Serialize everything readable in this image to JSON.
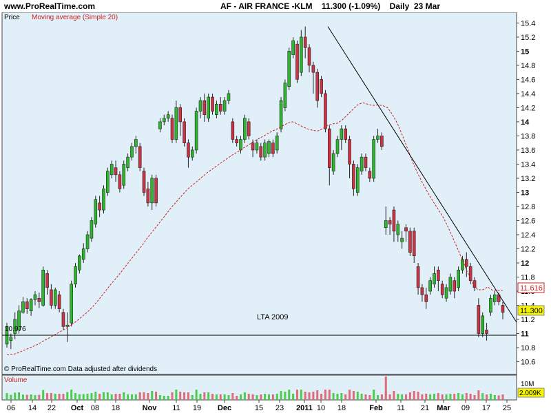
{
  "header": {
    "site": "www.ProRealTime.com",
    "instrument": "AF - AIR FRANCE -KLM",
    "last": "11.300 (-1.09%)",
    "period": "Daily",
    "date": "23 Mar"
  },
  "legend": {
    "price_label": "Price",
    "ma_label": "Moving average (Simple 20)",
    "volume_label": "Volume"
  },
  "footer_note": "© ProRealTime.com  Data adjusted after dividends",
  "annotations": {
    "support_label": "LTA 2009",
    "support_price_text": "10.976",
    "ma_value_box": "11.616",
    "last_value_box": "11.300",
    "volume_scale": "10M",
    "volume_last_box": "2.009K"
  },
  "colors": {
    "panel_bg": "#e1eff8",
    "up": "#2db72d",
    "down": "#cc3344",
    "ma": "#cc2222",
    "volume_up": "#4ccc4c",
    "volume_down": "#dd6b7a",
    "value_box_ma": "#cc2222",
    "value_box_last": "#f5f500"
  },
  "chart_data": {
    "type": "candlestick",
    "ylim": [
      10.42,
      15.55
    ],
    "yticks": [
      10.6,
      10.8,
      11,
      11.2,
      11.4,
      11.6,
      11.8,
      12,
      12.2,
      12.4,
      12.6,
      12.8,
      13,
      13.2,
      13.4,
      13.6,
      13.8,
      14,
      14.2,
      14.4,
      14.6,
      14.8,
      15,
      15.2,
      15.4
    ],
    "x_labels": [
      "06",
      "14",
      "22",
      "Oct",
      "08",
      "18",
      "Nov",
      "11",
      "19",
      "Dec",
      "15",
      "23",
      "2011",
      "10",
      "18",
      "Feb",
      "11",
      "21",
      "Mar",
      "09",
      "17",
      "25"
    ],
    "trendline": {
      "from_value": 15.35,
      "to_value": 11.16
    },
    "support_line": 10.976,
    "moving_average_points": [
      10.7,
      10.7,
      10.72,
      10.75,
      10.78,
      10.81,
      10.84,
      10.88,
      10.92,
      10.96,
      11.0,
      11.04,
      11.08,
      11.13,
      11.18,
      11.24,
      11.3,
      11.37,
      11.45,
      11.54,
      11.63,
      11.72,
      11.8,
      11.89,
      11.98,
      12.07,
      12.16,
      12.25,
      12.35,
      12.44,
      12.53,
      12.62,
      12.71,
      12.8,
      12.88,
      12.96,
      13.04,
      13.1,
      13.16,
      13.22,
      13.28,
      13.33,
      13.38,
      13.43,
      13.48,
      13.53,
      13.57,
      13.62,
      13.66,
      13.71,
      13.75,
      13.79,
      13.83,
      13.87,
      13.9,
      13.94,
      13.98,
      14.0,
      13.97,
      13.93,
      13.9,
      13.88,
      13.87,
      13.9,
      13.95,
      13.97,
      13.98,
      14.03,
      14.1,
      14.17,
      14.24,
      14.27,
      14.25,
      14.23,
      14.24,
      14.23,
      14.2,
      14.1,
      13.97,
      13.8,
      13.62,
      13.43,
      13.27,
      13.13,
      13.0,
      12.88,
      12.77,
      12.66,
      12.52,
      12.36,
      12.2,
      12.03,
      11.86,
      11.71,
      11.62,
      11.62,
      11.66,
      11.61,
      11.61,
      11.61
    ],
    "candles": [
      [
        10.85,
        11.1,
        10.8,
        11.15
      ],
      [
        10.9,
        10.95,
        10.78,
        11.0
      ],
      [
        11.0,
        11.2,
        10.92,
        11.3
      ],
      [
        11.05,
        11.32,
        11.0,
        11.4
      ],
      [
        11.3,
        11.45,
        11.28,
        11.52
      ],
      [
        11.45,
        11.35,
        11.28,
        11.5
      ],
      [
        11.32,
        11.48,
        11.25,
        11.5
      ],
      [
        11.48,
        11.55,
        11.4,
        11.6
      ],
      [
        11.5,
        11.45,
        11.36,
        11.58
      ],
      [
        11.4,
        11.9,
        11.38,
        11.95
      ],
      [
        11.85,
        11.65,
        11.55,
        11.9
      ],
      [
        11.62,
        11.4,
        11.35,
        11.7
      ],
      [
        11.4,
        11.62,
        11.35,
        11.65
      ],
      [
        11.55,
        11.35,
        11.3,
        11.6
      ],
      [
        11.3,
        11.1,
        11.05,
        11.35
      ],
      [
        11.1,
        11.12,
        10.88,
        11.3
      ],
      [
        11.15,
        11.7,
        11.1,
        11.75
      ],
      [
        11.7,
        11.95,
        11.65,
        12.0
      ],
      [
        11.9,
        12.1,
        11.85,
        12.12
      ],
      [
        12.05,
        12.2,
        12.0,
        12.28
      ],
      [
        12.2,
        12.4,
        12.15,
        12.45
      ],
      [
        12.35,
        12.6,
        12.3,
        12.65
      ],
      [
        12.55,
        12.9,
        12.5,
        12.95
      ],
      [
        12.85,
        12.75,
        12.65,
        12.95
      ],
      [
        12.75,
        13.05,
        12.7,
        13.1
      ],
      [
        13.0,
        13.3,
        12.95,
        13.35
      ],
      [
        13.25,
        13.4,
        13.2,
        13.45
      ],
      [
        13.35,
        13.25,
        13.15,
        13.45
      ],
      [
        13.25,
        13.05,
        13.0,
        13.3
      ],
      [
        13.1,
        13.4,
        13.05,
        13.45
      ],
      [
        13.35,
        13.5,
        13.3,
        13.55
      ],
      [
        13.5,
        13.65,
        13.45,
        13.7
      ],
      [
        13.65,
        13.75,
        13.55,
        13.8
      ],
      [
        13.65,
        13.35,
        13.3,
        13.7
      ],
      [
        13.3,
        13.0,
        12.95,
        13.35
      ],
      [
        13.05,
        12.85,
        12.8,
        13.15
      ],
      [
        12.85,
        13.2,
        12.75,
        13.25
      ],
      [
        13.2,
        12.85,
        12.8,
        13.25
      ],
      [
        13.9,
        14.0,
        13.85,
        14.05
      ],
      [
        14.0,
        14.05,
        13.95,
        14.1
      ],
      [
        14.05,
        14.1,
        14.0,
        14.15
      ],
      [
        14.05,
        13.75,
        13.7,
        14.1
      ],
      [
        13.75,
        14.2,
        13.7,
        14.3
      ],
      [
        14.2,
        14.0,
        13.8,
        14.25
      ],
      [
        14.0,
        13.7,
        13.65,
        14.05
      ],
      [
        13.7,
        13.5,
        13.35,
        13.75
      ],
      [
        13.5,
        13.6,
        13.45,
        13.65
      ],
      [
        13.6,
        14.15,
        13.55,
        14.2
      ],
      [
        14.15,
        14.3,
        14.05,
        14.35
      ],
      [
        14.3,
        14.1,
        14.0,
        14.4
      ],
      [
        14.05,
        14.35,
        14.0,
        14.4
      ],
      [
        14.35,
        14.15,
        14.1,
        14.4
      ],
      [
        14.1,
        14.25,
        14.05,
        14.3
      ],
      [
        14.25,
        14.15,
        14.1,
        14.35
      ],
      [
        14.15,
        14.3,
        14.1,
        14.35
      ],
      [
        14.3,
        14.4,
        14.25,
        14.45
      ],
      [
        14.0,
        13.75,
        13.7,
        14.05
      ],
      [
        13.75,
        13.7,
        13.65,
        13.8
      ],
      [
        13.6,
        13.75,
        13.55,
        13.8
      ],
      [
        13.75,
        14.05,
        13.7,
        14.1
      ],
      [
        14.0,
        13.8,
        13.75,
        14.05
      ],
      [
        13.7,
        13.6,
        13.5,
        13.75
      ],
      [
        13.6,
        13.7,
        13.55,
        13.75
      ],
      [
        13.65,
        13.5,
        13.45,
        13.7
      ],
      [
        13.5,
        13.7,
        13.45,
        13.75
      ],
      [
        13.55,
        13.72,
        13.5,
        13.75
      ],
      [
        13.7,
        13.55,
        13.5,
        13.75
      ],
      [
        13.6,
        13.8,
        13.55,
        13.85
      ],
      [
        13.9,
        14.3,
        13.85,
        14.35
      ],
      [
        14.2,
        14.55,
        14.15,
        14.6
      ],
      [
        14.5,
        15.0,
        14.45,
        15.05
      ],
      [
        14.95,
        15.15,
        14.9,
        15.2
      ],
      [
        15.1,
        14.6,
        14.55,
        15.15
      ],
      [
        14.7,
        15.2,
        14.65,
        15.3
      ],
      [
        15.2,
        15.05,
        14.9,
        15.35
      ],
      [
        15.05,
        14.8,
        14.7,
        15.1
      ],
      [
        14.8,
        14.7,
        14.4,
        14.85
      ],
      [
        14.7,
        14.3,
        14.2,
        14.75
      ],
      [
        14.6,
        14.4,
        14.35,
        14.65
      ],
      [
        14.4,
        13.9,
        13.85,
        14.45
      ],
      [
        13.9,
        13.35,
        13.1,
        13.95
      ],
      [
        13.3,
        13.55,
        13.25,
        13.6
      ],
      [
        13.55,
        13.75,
        13.5,
        13.8
      ],
      [
        13.75,
        13.9,
        13.6,
        13.95
      ],
      [
        13.9,
        13.75,
        13.7,
        13.95
      ],
      [
        13.75,
        13.4,
        13.2,
        13.8
      ],
      [
        13.4,
        13.05,
        12.95,
        13.45
      ],
      [
        13.0,
        13.35,
        12.95,
        13.4
      ],
      [
        13.3,
        13.5,
        13.25,
        13.55
      ],
      [
        13.5,
        13.35,
        13.3,
        13.55
      ],
      [
        13.3,
        13.2,
        13.15,
        13.35
      ],
      [
        13.2,
        13.75,
        13.15,
        13.8
      ],
      [
        13.75,
        13.8,
        13.7,
        13.9
      ],
      [
        13.8,
        13.65,
        13.6,
        13.85
      ],
      [
        12.5,
        12.6,
        12.4,
        12.8
      ],
      [
        12.6,
        12.55,
        12.4,
        12.65
      ],
      [
        12.75,
        12.45,
        12.3,
        12.8
      ],
      [
        12.4,
        12.55,
        12.3,
        12.6
      ],
      [
        12.3,
        12.35,
        12.2,
        12.45
      ],
      [
        12.5,
        12.45,
        12.3,
        12.55
      ],
      [
        12.45,
        12.15,
        12.1,
        12.5
      ],
      [
        12.45,
        12.1,
        12.0,
        12.5
      ],
      [
        11.95,
        11.65,
        11.55,
        12.0
      ],
      [
        11.65,
        11.55,
        11.45,
        11.7
      ],
      [
        11.55,
        11.45,
        11.35,
        11.65
      ],
      [
        11.6,
        11.75,
        11.55,
        11.8
      ],
      [
        11.7,
        11.85,
        11.65,
        11.95
      ],
      [
        11.9,
        11.75,
        11.6,
        11.95
      ],
      [
        11.7,
        11.55,
        11.5,
        11.75
      ],
      [
        11.5,
        11.65,
        11.45,
        11.7
      ],
      [
        11.6,
        11.8,
        11.55,
        11.85
      ],
      [
        11.75,
        11.6,
        11.5,
        11.8
      ],
      [
        11.65,
        11.9,
        11.6,
        11.95
      ],
      [
        11.9,
        12.05,
        11.85,
        12.1
      ],
      [
        12.05,
        11.95,
        11.8,
        12.15
      ],
      [
        11.95,
        11.75,
        11.7,
        12.0
      ],
      [
        11.75,
        11.65,
        11.6,
        11.8
      ],
      [
        11.4,
        11.0,
        10.95,
        11.5
      ],
      [
        11.0,
        11.25,
        10.95,
        11.3
      ],
      [
        11.05,
        11.0,
        10.9,
        11.15
      ],
      [
        11.3,
        11.5,
        11.25,
        11.55
      ],
      [
        11.45,
        11.55,
        11.4,
        11.6
      ],
      [
        11.55,
        11.45,
        11.4,
        11.58
      ],
      [
        11.4,
        11.3,
        11.2,
        11.45
      ]
    ]
  }
}
